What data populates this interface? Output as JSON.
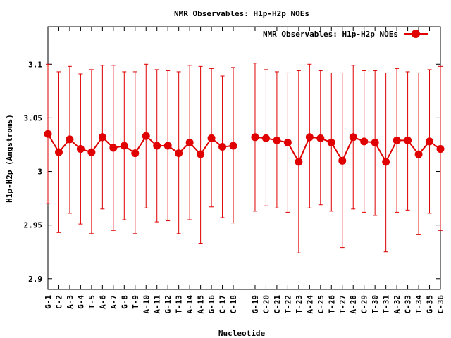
{
  "chart_data": {
    "type": "line",
    "title": "NMR Observables: H1p-H2p NOEs",
    "xlabel": "Nucleotide",
    "ylabel": "H1p-H2p (Angstroms)",
    "ylim": [
      2.89,
      3.135
    ],
    "yticks": [
      2.9,
      2.95,
      3,
      3.05,
      3.1
    ],
    "ytick_labels": [
      "2.9",
      "2.95",
      "3",
      "3.05",
      "3.1"
    ],
    "legend": {
      "label": "NMR Observables: H1p-H2p NOEs",
      "position": "top-right"
    },
    "color": "#e00000",
    "grid": false,
    "series": [
      {
        "name": "NMR Observables: H1p-H2p NOEs",
        "segments": [
          [
            {
              "label": "G-1",
              "x": 1,
              "y": 3.035,
              "lo": 2.97,
              "hi": 3.1
            },
            {
              "label": "C-2",
              "x": 2,
              "y": 3.018,
              "lo": 2.943,
              "hi": 3.093
            },
            {
              "label": "A-3",
              "x": 3,
              "y": 3.03,
              "lo": 2.961,
              "hi": 3.098
            },
            {
              "label": "G-4",
              "x": 4,
              "y": 3.021,
              "lo": 2.951,
              "hi": 3.091
            },
            {
              "label": "T-5",
              "x": 5,
              "y": 3.018,
              "lo": 2.942,
              "hi": 3.095
            },
            {
              "label": "A-6",
              "x": 6,
              "y": 3.032,
              "lo": 2.965,
              "hi": 3.099
            },
            {
              "label": "A-7",
              "x": 7,
              "y": 3.022,
              "lo": 2.945,
              "hi": 3.099
            },
            {
              "label": "G-8",
              "x": 8,
              "y": 3.024,
              "lo": 2.955,
              "hi": 3.093
            },
            {
              "label": "T-9",
              "x": 9,
              "y": 3.017,
              "lo": 2.942,
              "hi": 3.093
            },
            {
              "label": "A-10",
              "x": 10,
              "y": 3.033,
              "lo": 2.966,
              "hi": 3.1
            },
            {
              "label": "A-11",
              "x": 11,
              "y": 3.024,
              "lo": 2.953,
              "hi": 3.095
            },
            {
              "label": "G-12",
              "x": 12,
              "y": 3.024,
              "lo": 2.954,
              "hi": 3.094
            },
            {
              "label": "T-13",
              "x": 13,
              "y": 3.017,
              "lo": 2.942,
              "hi": 3.093
            },
            {
              "label": "A-14",
              "x": 14,
              "y": 3.027,
              "lo": 2.955,
              "hi": 3.099
            },
            {
              "label": "A-15",
              "x": 15,
              "y": 3.016,
              "lo": 2.933,
              "hi": 3.098
            },
            {
              "label": "G-16",
              "x": 16,
              "y": 3.031,
              "lo": 2.967,
              "hi": 3.096
            },
            {
              "label": "C-17",
              "x": 17,
              "y": 3.023,
              "lo": 2.957,
              "hi": 3.089
            },
            {
              "label": "C-18",
              "x": 18,
              "y": 3.024,
              "lo": 2.952,
              "hi": 3.097
            }
          ],
          [
            {
              "label": "G-19",
              "x": 20,
              "y": 3.032,
              "lo": 2.963,
              "hi": 3.101
            },
            {
              "label": "C-20",
              "x": 21,
              "y": 3.031,
              "lo": 2.968,
              "hi": 3.095
            },
            {
              "label": "C-21",
              "x": 22,
              "y": 3.029,
              "lo": 2.966,
              "hi": 3.093
            },
            {
              "label": "T-22",
              "x": 23,
              "y": 3.027,
              "lo": 2.962,
              "hi": 3.092
            },
            {
              "label": "T-23",
              "x": 24,
              "y": 3.009,
              "lo": 2.924,
              "hi": 3.094
            },
            {
              "label": "A-24",
              "x": 25,
              "y": 3.032,
              "lo": 2.966,
              "hi": 3.1
            },
            {
              "label": "C-25",
              "x": 26,
              "y": 3.031,
              "lo": 2.969,
              "hi": 3.094
            },
            {
              "label": "T-26",
              "x": 27,
              "y": 3.027,
              "lo": 2.963,
              "hi": 3.092
            },
            {
              "label": "T-27",
              "x": 28,
              "y": 3.01,
              "lo": 2.929,
              "hi": 3.092
            },
            {
              "label": "A-28",
              "x": 29,
              "y": 3.032,
              "lo": 2.965,
              "hi": 3.099
            },
            {
              "label": "C-29",
              "x": 30,
              "y": 3.028,
              "lo": 2.962,
              "hi": 3.094
            },
            {
              "label": "T-30",
              "x": 31,
              "y": 3.027,
              "lo": 2.959,
              "hi": 3.094
            },
            {
              "label": "T-31",
              "x": 32,
              "y": 3.009,
              "lo": 2.925,
              "hi": 3.092
            },
            {
              "label": "A-32",
              "x": 33,
              "y": 3.029,
              "lo": 2.962,
              "hi": 3.096
            },
            {
              "label": "C-33",
              "x": 34,
              "y": 3.029,
              "lo": 2.964,
              "hi": 3.093
            },
            {
              "label": "T-34",
              "x": 35,
              "y": 3.016,
              "lo": 2.941,
              "hi": 3.092
            },
            {
              "label": "G-35",
              "x": 36,
              "y": 3.028,
              "lo": 2.961,
              "hi": 3.095
            },
            {
              "label": "C-36",
              "x": 37,
              "y": 3.021,
              "lo": 2.945,
              "hi": 3.098
            }
          ]
        ]
      }
    ]
  }
}
